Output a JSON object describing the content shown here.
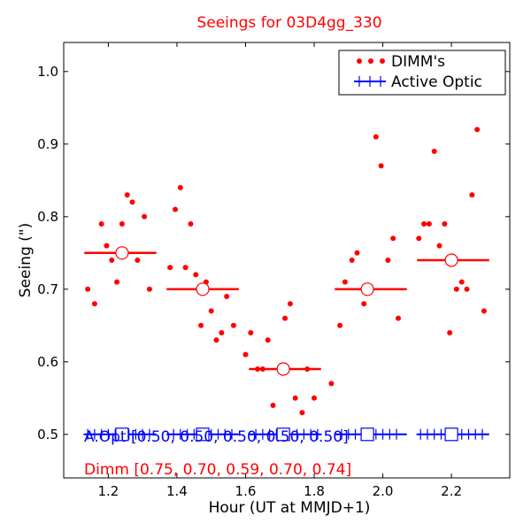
{
  "chart_data": {
    "type": "scatter",
    "title": "Seeings for 03D4gg_330",
    "xlabel": "Hour (UT at MMJD+1)",
    "ylabel": "Seeing (\")",
    "xlim": [
      1.07,
      2.37
    ],
    "ylim": [
      0.44,
      1.04
    ],
    "xticks": [
      1.2,
      1.4,
      1.6,
      1.8,
      2.0,
      2.2
    ],
    "xtick_labels": [
      "1.2",
      "1.4",
      "1.6",
      "1.8",
      "2.0",
      "2.2"
    ],
    "yticks": [
      0.5,
      0.6,
      0.7,
      0.8,
      0.9,
      1.0
    ],
    "ytick_labels": [
      "0.5",
      "0.6",
      "0.7",
      "0.8",
      "0.9",
      "1.0"
    ],
    "colors": {
      "dimm": "#ff0000",
      "aopt": "#0000ff"
    },
    "legend": {
      "location": "top-right",
      "entries": [
        {
          "label": "DIMM's",
          "marker": "dots",
          "color": "#ff0000"
        },
        {
          "label": "Active Optic",
          "marker": "plus-line",
          "color": "#0000ff"
        }
      ]
    },
    "dimm_points": [
      [
        1.14,
        0.7
      ],
      [
        1.16,
        0.68
      ],
      [
        1.18,
        0.79
      ],
      [
        1.195,
        0.76
      ],
      [
        1.21,
        0.74
      ],
      [
        1.225,
        0.71
      ],
      [
        1.24,
        0.79
      ],
      [
        1.255,
        0.83
      ],
      [
        1.27,
        0.82
      ],
      [
        1.285,
        0.74
      ],
      [
        1.305,
        0.8
      ],
      [
        1.32,
        0.7
      ],
      [
        1.38,
        0.73
      ],
      [
        1.395,
        0.81
      ],
      [
        1.41,
        0.84
      ],
      [
        1.425,
        0.73
      ],
      [
        1.44,
        0.79
      ],
      [
        1.455,
        0.72
      ],
      [
        1.47,
        0.65
      ],
      [
        1.485,
        0.71
      ],
      [
        1.5,
        0.67
      ],
      [
        1.515,
        0.63
      ],
      [
        1.53,
        0.64
      ],
      [
        1.545,
        0.69
      ],
      [
        1.565,
        0.65
      ],
      [
        1.6,
        0.61
      ],
      [
        1.615,
        0.64
      ],
      [
        1.635,
        0.59
      ],
      [
        1.65,
        0.59
      ],
      [
        1.665,
        0.63
      ],
      [
        1.68,
        0.54
      ],
      [
        1.715,
        0.66
      ],
      [
        1.73,
        0.68
      ],
      [
        1.745,
        0.55
      ],
      [
        1.765,
        0.53
      ],
      [
        1.78,
        0.59
      ],
      [
        1.8,
        0.55
      ],
      [
        1.85,
        0.57
      ],
      [
        1.875,
        0.65
      ],
      [
        1.89,
        0.71
      ],
      [
        1.91,
        0.74
      ],
      [
        1.925,
        0.75
      ],
      [
        1.945,
        0.68
      ],
      [
        1.98,
        0.91
      ],
      [
        1.995,
        0.87
      ],
      [
        2.015,
        0.74
      ],
      [
        2.03,
        0.77
      ],
      [
        2.045,
        0.66
      ],
      [
        2.105,
        0.77
      ],
      [
        2.12,
        0.79
      ],
      [
        2.135,
        0.79
      ],
      [
        2.15,
        0.89
      ],
      [
        2.165,
        0.76
      ],
      [
        2.18,
        0.79
      ],
      [
        2.195,
        0.64
      ],
      [
        2.215,
        0.7
      ],
      [
        2.23,
        0.71
      ],
      [
        2.245,
        0.7
      ],
      [
        2.26,
        0.83
      ],
      [
        2.275,
        0.92
      ],
      [
        2.295,
        0.67
      ]
    ],
    "dimm_bins": [
      {
        "x": 1.24,
        "x_start": 1.13,
        "x_end": 1.34,
        "value": 0.75
      },
      {
        "x": 1.475,
        "x_start": 1.37,
        "x_end": 1.58,
        "value": 0.7
      },
      {
        "x": 1.71,
        "x_start": 1.61,
        "x_end": 1.82,
        "value": 0.59
      },
      {
        "x": 1.955,
        "x_start": 1.86,
        "x_end": 2.07,
        "value": 0.7
      },
      {
        "x": 2.2,
        "x_start": 2.1,
        "x_end": 2.31,
        "value": 0.74
      }
    ],
    "aopt_points": [
      1.14,
      1.16,
      1.18,
      1.2,
      1.22,
      1.26,
      1.28,
      1.3,
      1.32,
      1.39,
      1.41,
      1.43,
      1.45,
      1.46,
      1.5,
      1.52,
      1.54,
      1.56,
      1.63,
      1.65,
      1.67,
      1.69,
      1.75,
      1.77,
      1.79,
      1.81,
      1.88,
      1.9,
      1.92,
      1.94,
      1.98,
      2.0,
      2.02,
      2.04,
      2.11,
      2.13,
      2.15,
      2.17,
      2.23,
      2.25,
      2.27,
      2.29
    ],
    "aopt_value": 0.5,
    "aopt_bins": [
      {
        "x": 1.24,
        "x_start": 1.13,
        "x_end": 1.34,
        "value": 0.5
      },
      {
        "x": 1.475,
        "x_start": 1.37,
        "x_end": 1.58,
        "value": 0.5
      },
      {
        "x": 1.71,
        "x_start": 1.61,
        "x_end": 1.82,
        "value": 0.5
      },
      {
        "x": 1.955,
        "x_start": 1.86,
        "x_end": 2.07,
        "value": 0.5
      },
      {
        "x": 2.2,
        "x_start": 2.1,
        "x_end": 2.31,
        "value": 0.5
      }
    ],
    "annotations": {
      "aopt": "A.Opt [0.50, 0.50, 0.50, 0.50, 0.50]",
      "dimm": "Dimm [0.75, 0.70, 0.59, 0.70, 0.74]"
    }
  }
}
